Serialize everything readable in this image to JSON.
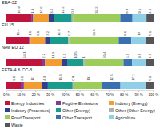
{
  "chart_data": {
    "type": "bar",
    "orientation": "horizontal",
    "stacked": true,
    "data_labels": true,
    "grid": false,
    "legend": "bottom",
    "categories": [
      "EEA-32",
      "EU 15",
      "New EU 12",
      "EFTA-4 & CC-3"
    ],
    "xlim": [
      0,
      100
    ],
    "xticks": [
      {
        "value": 0,
        "label": "0 %"
      },
      {
        "value": 10,
        "label": "10 %"
      },
      {
        "value": 20,
        "label": "20 %"
      },
      {
        "value": 30,
        "label": "30 %"
      },
      {
        "value": 40,
        "label": "40 %"
      },
      {
        "value": 50,
        "label": "50 %"
      },
      {
        "value": 60,
        "label": "60 %"
      },
      {
        "value": 70,
        "label": "70 %"
      },
      {
        "value": 80,
        "label": "80 %"
      },
      {
        "value": 90,
        "label": "90 %"
      },
      {
        "value": 100,
        "label": "100 %"
      }
    ],
    "series": [
      {
        "name": "Energy Industries",
        "color": "#c0143c",
        "values": [
          16.9,
          15.4,
          24.1,
          9.8
        ]
      },
      {
        "name": "Fugitive Emissions",
        "color": "#7b3f99",
        "values": [
          1.3,
          1.1,
          2.2,
          2.1
        ]
      },
      {
        "name": "Industry (Energy)",
        "color": "#f39c32",
        "values": [
          10.6,
          9.8,
          11.3,
          12.0
        ]
      },
      {
        "name": "Industry (Processes)",
        "color": "#2e3f8f",
        "values": [
          3.4,
          3.2,
          4.1,
          4.3
        ]
      },
      {
        "name": "Other (Energy)",
        "color": "#1a9c8c",
        "values": [
          12.2,
          12.6,
          10.5,
          16.8
        ]
      },
      {
        "name": "Other (Other Energy)",
        "color": "#b0b0b0",
        "values": [
          0.8,
          0.7,
          1.0,
          0.9
        ]
      },
      {
        "name": "Road Transport",
        "color": "#9ccc5a",
        "values": [
          32.2,
          33.5,
          26.4,
          19.1
        ]
      },
      {
        "name": "Other Transport",
        "color": "#3a6fb0",
        "values": [
          8.3,
          8.6,
          5.9,
          12.5
        ]
      },
      {
        "name": "Agriculture",
        "color": "#8fd0e8",
        "values": [
          9.5,
          10.0,
          9.6,
          17.2
        ]
      },
      {
        "name": "Waste",
        "color": "#555555",
        "values": [
          4.8,
          5.1,
          4.9,
          5.3
        ]
      }
    ]
  }
}
